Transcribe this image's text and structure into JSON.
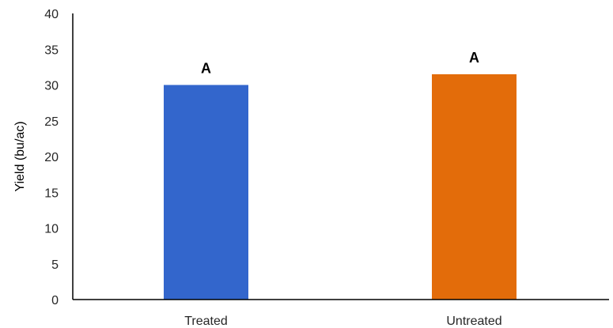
{
  "chart_data": {
    "type": "bar",
    "title": "",
    "xlabel": "",
    "ylabel": "Yield (bu/ac)",
    "ylim": [
      0,
      40
    ],
    "yticks": [
      "0",
      "5",
      "10",
      "15",
      "20",
      "25",
      "30",
      "35",
      "40"
    ],
    "categories": [
      "Treated",
      "Untreated"
    ],
    "values": [
      30,
      31.5
    ],
    "data_labels": [
      "A",
      "A"
    ],
    "colors": [
      "#3366cc",
      "#e36c0a"
    ],
    "grid": false,
    "legend": "none"
  }
}
